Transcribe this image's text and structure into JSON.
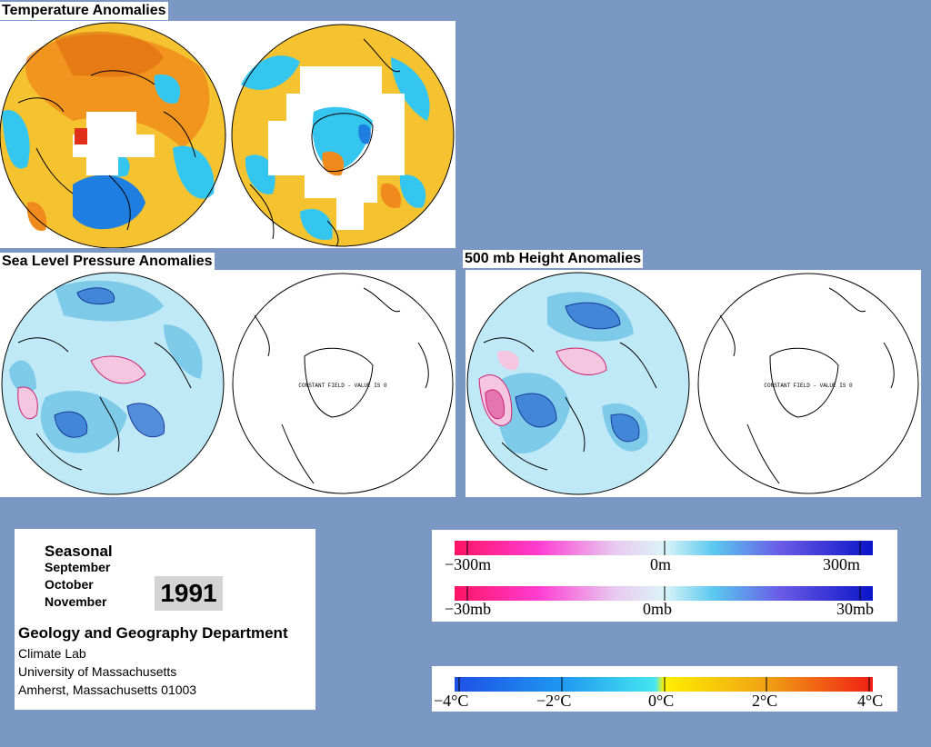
{
  "titles": {
    "temperature": "Temperature Anomalies",
    "slp": "Sea Level Pressure Anomalies",
    "height": "500 mb Height Anomalies"
  },
  "map_text": {
    "constant_field": "CONSTANT FIELD - VALUE IS 0"
  },
  "info": {
    "season": "Seasonal",
    "months": [
      "September",
      "October",
      "November"
    ],
    "year": "1991",
    "department": "Geology and Geography Department",
    "address": [
      "Climate Lab",
      "University of Massachusetts",
      "Amherst, Massachusetts 01003"
    ]
  },
  "legends": {
    "height": {
      "min": "−300m",
      "mid": "0m",
      "max": "300m"
    },
    "pressure": {
      "min": "−30mb",
      "mid": "0mb",
      "max": "30mb"
    },
    "temperature": [
      "−4°C",
      "−2°C",
      "0°C",
      "2°C",
      "4°C"
    ]
  },
  "colors": {
    "background": "#7b97c4",
    "warm": "#f08a1c",
    "yellow": "#f5c330",
    "cool_cyan": "#35c6f0",
    "cool_blue": "#1e7fe0",
    "pressure_light": "#bfe9f6",
    "pressure_mid": "#7ecbe9",
    "pressure_dark": "#2f6fd0",
    "pressure_positive": "#e060a8"
  }
}
